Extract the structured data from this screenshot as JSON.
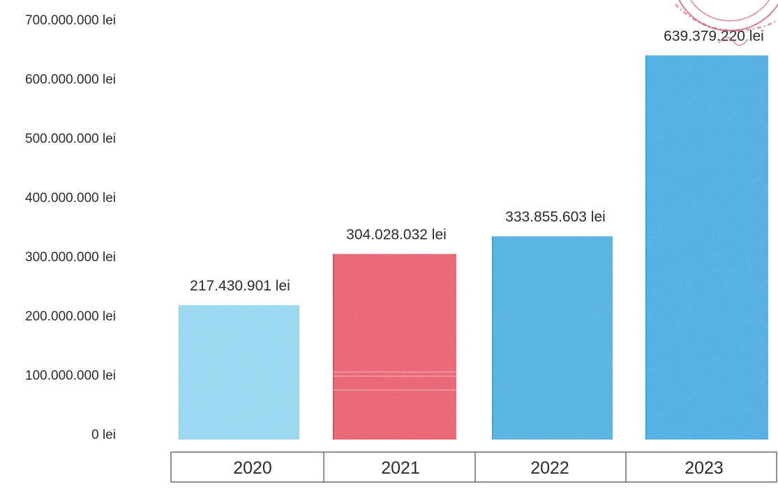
{
  "chart_data": {
    "type": "bar",
    "categories": [
      "2020",
      "2021",
      "2022",
      "2023"
    ],
    "values": [
      217430901,
      304028032,
      333855603,
      639379220
    ],
    "value_labels": [
      "217.430.901 lei",
      "304.028.032 lei",
      "333.855.603 lei",
      "639.379.220 lei"
    ],
    "bar_colors": [
      "#8fd4ee",
      "#e8475e",
      "#2cacdf",
      "#1ea8e2"
    ],
    "y_ticks": [
      0,
      100000000,
      200000000,
      300000000,
      400000000,
      500000000,
      600000000,
      700000000
    ],
    "y_tick_labels": [
      "0 lei",
      "100.000.000 lei",
      "200.000.000 lei",
      "300.000.000 lei",
      "400.000.000 lei",
      "500.000.000 lei",
      "600.000.000 lei",
      "700.000.000 lei"
    ],
    "ylim": [
      0,
      700000000
    ],
    "title": "",
    "xlabel": "",
    "ylabel": "",
    "grid": false,
    "legend": "none",
    "category_table": true
  },
  "stamp_color": "#d0506a"
}
